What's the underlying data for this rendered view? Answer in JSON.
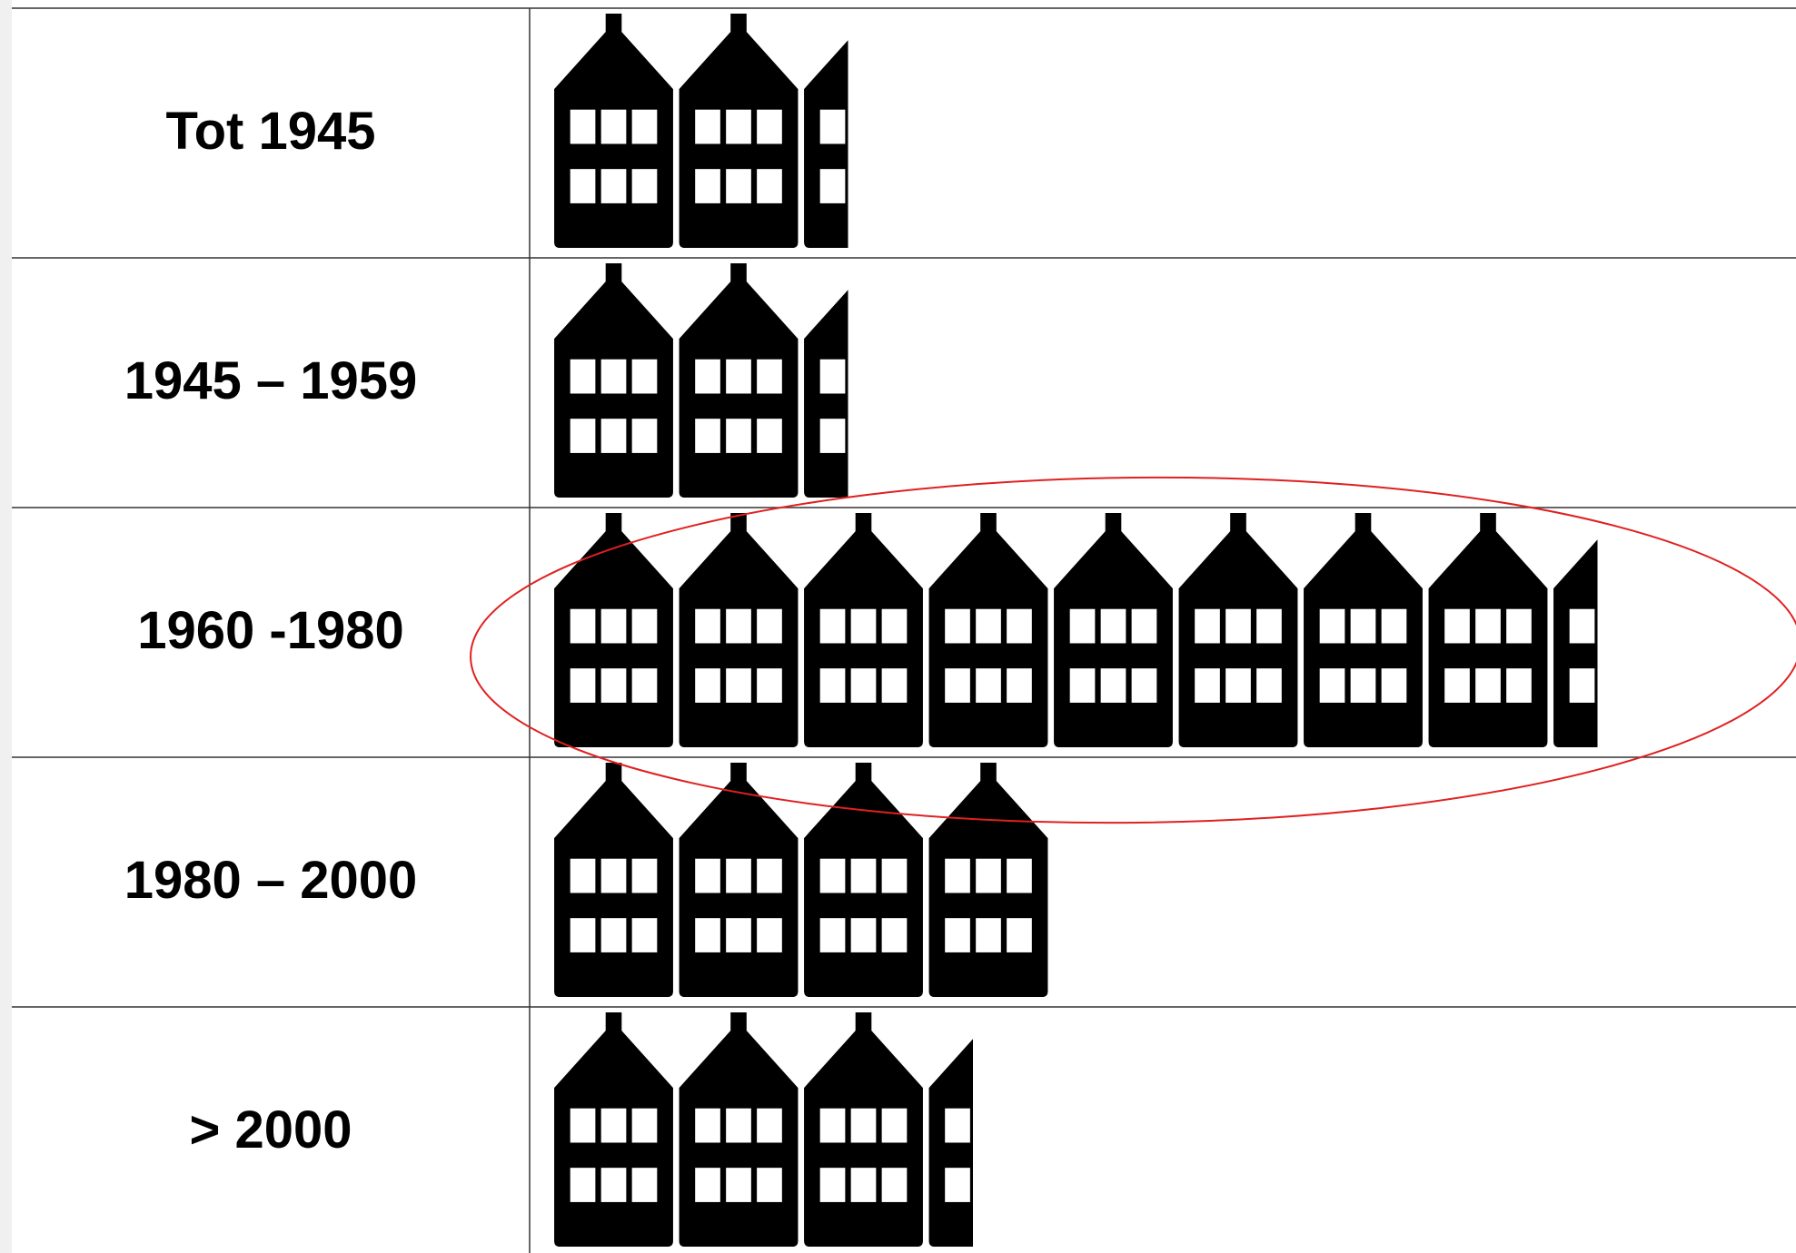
{
  "chart_data": {
    "type": "pictograph",
    "categories": [
      "Tot 1945",
      "1945 – 1959",
      "1960 -1980",
      "1980 – 2000",
      "> 2000"
    ],
    "values": [
      2.4,
      2.4,
      8.4,
      4,
      3.4
    ],
    "color": "#000000"
  }
}
